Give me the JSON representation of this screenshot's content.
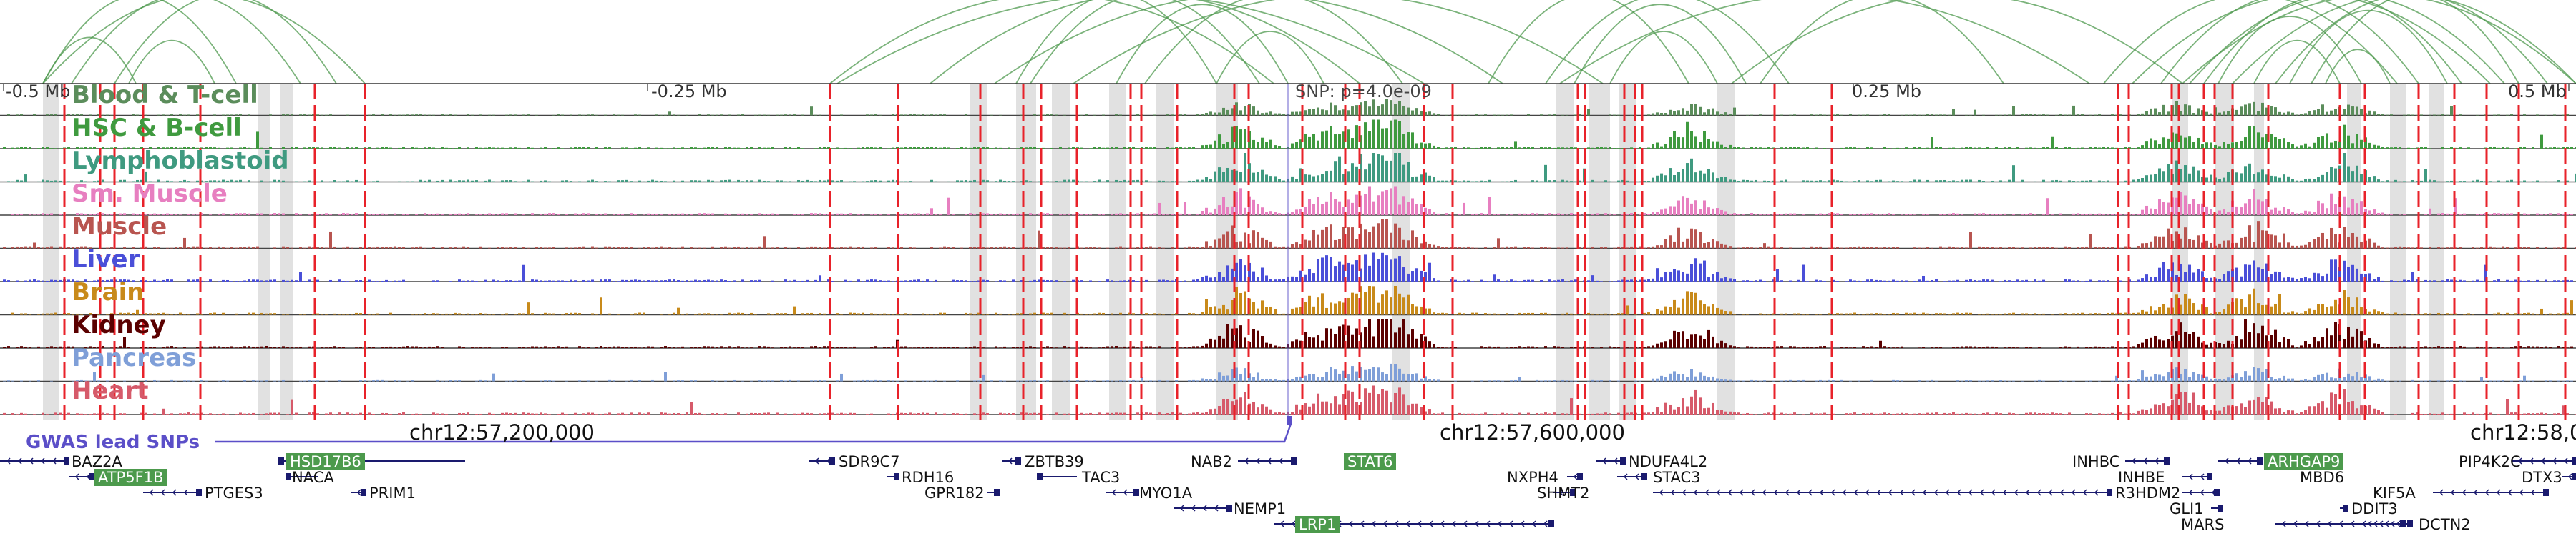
{
  "tracks": [
    {
      "label": "Blood & T-cell",
      "color": "#5b8d5b"
    },
    {
      "label": "HSC & B-cell",
      "color": "#3f9a3f"
    },
    {
      "label": "Lymphoblastoid",
      "color": "#3f9a80"
    },
    {
      "label": "Sm. Muscle",
      "color": "#e77fc0"
    },
    {
      "label": "Muscle",
      "color": "#b85550"
    },
    {
      "label": "Liver",
      "color": "#4a4fd8"
    },
    {
      "label": "Brain",
      "color": "#c88a1a"
    },
    {
      "label": "Kidney",
      "color": "#5a0000"
    },
    {
      "label": "Pancreas",
      "color": "#7f9fd8"
    },
    {
      "label": "Heart",
      "color": "#d65a6a"
    }
  ],
  "axis": {
    "ticks": [
      "-0.5 Mb",
      "-0.25 Mb",
      "0.25 Mb",
      "0.5 Mb"
    ]
  },
  "snp_label": "SNP: p=4.0e-09",
  "coordinates": [
    "chr12:57,200,000",
    "chr12:57,600,000",
    "chr12:58,0"
  ],
  "gwas_label": "GWAS lead SNPs",
  "genes": [
    {
      "name": "BAZ2A",
      "highlight": false
    },
    {
      "name": "ATP5F1B",
      "highlight": true
    },
    {
      "name": "HSD17B6",
      "highlight": true
    },
    {
      "name": "NACA",
      "highlight": false
    },
    {
      "name": "PRIM1",
      "highlight": false
    },
    {
      "name": "PTGES3",
      "highlight": false
    },
    {
      "name": "SDR9C7",
      "highlight": false
    },
    {
      "name": "RDH16",
      "highlight": false
    },
    {
      "name": "GPR182",
      "highlight": false
    },
    {
      "name": "ZBTB39",
      "highlight": false
    },
    {
      "name": "TAC3",
      "highlight": false
    },
    {
      "name": "MYO1A",
      "highlight": false
    },
    {
      "name": "NAB2",
      "highlight": false
    },
    {
      "name": "STAT6",
      "highlight": true
    },
    {
      "name": "NEMP1",
      "highlight": false
    },
    {
      "name": "LRP1",
      "highlight": true
    },
    {
      "name": "NDUFA4L2",
      "highlight": false
    },
    {
      "name": "NXPH4",
      "highlight": false
    },
    {
      "name": "STAC3",
      "highlight": false
    },
    {
      "name": "SHMT2",
      "highlight": false
    },
    {
      "name": "INHBC",
      "highlight": false
    },
    {
      "name": "INHBE",
      "highlight": false
    },
    {
      "name": "R3HDM2",
      "highlight": false
    },
    {
      "name": "GLI1",
      "highlight": false
    },
    {
      "name": "ARHGAP9",
      "highlight": true
    },
    {
      "name": "MBD6",
      "highlight": false
    },
    {
      "name": "MARS",
      "highlight": false
    },
    {
      "name": "DDIT3",
      "highlight": false
    },
    {
      "name": "DCTN2",
      "highlight": false
    },
    {
      "name": "PIP4K2C",
      "highlight": false
    },
    {
      "name": "DTX3",
      "highlight": false
    },
    {
      "name": "KIF5A",
      "highlight": false
    }
  ],
  "colors": {
    "arc": "#4f9a4f",
    "dashed_marker": "#e8222a",
    "shade": "#dcdcdc",
    "gwas": "#5b4fc8",
    "gene_glyph": "#1a1a6e"
  }
}
